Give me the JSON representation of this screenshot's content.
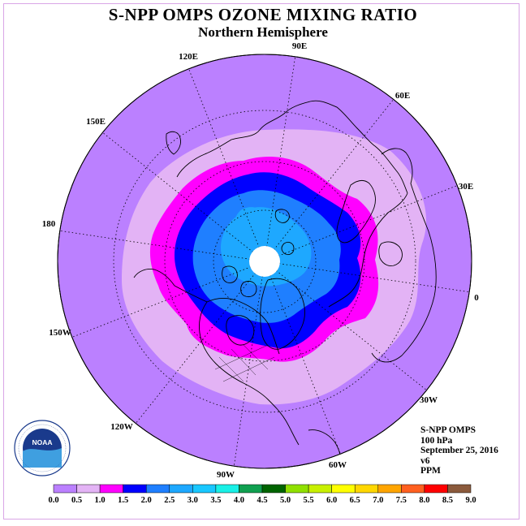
{
  "title": "S-NPP OMPS OZONE MIXING RATIO",
  "subtitle": "Northern Hemisphere",
  "info": {
    "instrument": "S-NPP OMPS",
    "pressure": "100 hPa",
    "date": "September 25, 2016",
    "version": "v6",
    "units": "PPM"
  },
  "longitude_labels": [
    "90E",
    "60E",
    "30E",
    "0",
    "30W",
    "60W",
    "90W",
    "120W",
    "150W",
    "180",
    "150E",
    "120E"
  ],
  "logo": {
    "text": "NOAA",
    "ring_text": "NATIONAL OCEANIC AND ATMOSPHERIC ADMINISTRATION · U.S. DEPARTMENT OF COMMERCE"
  },
  "colorbar": {
    "ticks": [
      "0.0",
      "0.5",
      "1.0",
      "1.5",
      "2.0",
      "2.5",
      "3.0",
      "3.5",
      "4.0",
      "4.5",
      "5.0",
      "5.5",
      "6.0",
      "6.5",
      "7.0",
      "7.5",
      "8.0",
      "8.5",
      "9.0"
    ],
    "colors": [
      "#bb80ff",
      "#e3b3f5",
      "#ff00ff",
      "#0000ff",
      "#1f7fff",
      "#1ea8ff",
      "#19c7ff",
      "#19f0e6",
      "#10a050",
      "#006400",
      "#90e000",
      "#c8f000",
      "#ffff00",
      "#ffd700",
      "#ffa500",
      "#ff6020",
      "#ff0000",
      "#8b5a3c"
    ]
  },
  "map_colors": {
    "background": "#bb80ff",
    "band_0_5_1_0": "#e3b3f5",
    "band_1_0_1_5": "#ff00ff",
    "band_1_5_2_0": "#0000ff",
    "band_2_0_2_5": "#1f7fff",
    "band_2_5_3_0": "#1ea8ff",
    "pole_missing": "#ffffff"
  }
}
